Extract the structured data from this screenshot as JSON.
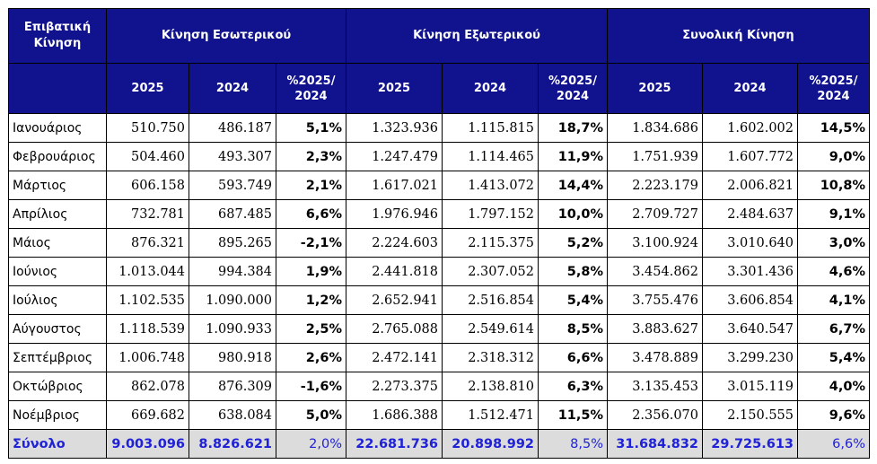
{
  "header": {
    "col0_line1": "Επιβατική",
    "col0_line2": "Κίνηση",
    "group_domestic": "Κίνηση Εσωτερικού",
    "group_international": "Κίνηση Εξωτερικού",
    "group_total": "Συνολική Κίνηση",
    "year_current": "2025",
    "year_previous": "2024",
    "pct_line1": "%2025/",
    "pct_line2": "2024"
  },
  "rows": [
    {
      "month": "Ιανουάριος",
      "d25": "510.750",
      "d24": "486.187",
      "dp": "5,1%",
      "i25": "1.323.936",
      "i24": "1.115.815",
      "ip": "18,7%",
      "t25": "1.834.686",
      "t24": "1.602.002",
      "tp": "14,5%"
    },
    {
      "month": "Φεβρουάριος",
      "d25": "504.460",
      "d24": "493.307",
      "dp": "2,3%",
      "i25": "1.247.479",
      "i24": "1.114.465",
      "ip": "11,9%",
      "t25": "1.751.939",
      "t24": "1.607.772",
      "tp": "9,0%"
    },
    {
      "month": "Μάρτιος",
      "d25": "606.158",
      "d24": "593.749",
      "dp": "2,1%",
      "i25": "1.617.021",
      "i24": "1.413.072",
      "ip": "14,4%",
      "t25": "2.223.179",
      "t24": "2.006.821",
      "tp": "10,8%"
    },
    {
      "month": "Απρίλιος",
      "d25": "732.781",
      "d24": "687.485",
      "dp": "6,6%",
      "i25": "1.976.946",
      "i24": "1.797.152",
      "ip": "10,0%",
      "t25": "2.709.727",
      "t24": "2.484.637",
      "tp": "9,1%"
    },
    {
      "month": "Μάιος",
      "d25": "876.321",
      "d24": "895.265",
      "dp": "-2,1%",
      "i25": "2.224.603",
      "i24": "2.115.375",
      "ip": "5,2%",
      "t25": "3.100.924",
      "t24": "3.010.640",
      "tp": "3,0%"
    },
    {
      "month": "Ιούνιος",
      "d25": "1.013.044",
      "d24": "994.384",
      "dp": "1,9%",
      "i25": "2.441.818",
      "i24": "2.307.052",
      "ip": "5,8%",
      "t25": "3.454.862",
      "t24": "3.301.436",
      "tp": "4,6%"
    },
    {
      "month": "Ιούλιος",
      "d25": "1.102.535",
      "d24": "1.090.000",
      "dp": "1,2%",
      "i25": "2.652.941",
      "i24": "2.516.854",
      "ip": "5,4%",
      "t25": "3.755.476",
      "t24": "3.606.854",
      "tp": "4,1%"
    },
    {
      "month": "Αύγουστος",
      "d25": "1.118.539",
      "d24": "1.090.933",
      "dp": "2,5%",
      "i25": "2.765.088",
      "i24": "2.549.614",
      "ip": "8,5%",
      "t25": "3.883.627",
      "t24": "3.640.547",
      "tp": "6,7%"
    },
    {
      "month": "Σεπτέμβριος",
      "d25": "1.006.748",
      "d24": "980.918",
      "dp": "2,6%",
      "i25": "2.472.141",
      "i24": "2.318.312",
      "ip": "6,6%",
      "t25": "3.478.889",
      "t24": "3.299.230",
      "tp": "5,4%"
    },
    {
      "month": "Οκτώβριος",
      "d25": "862.078",
      "d24": "876.309",
      "dp": "-1,6%",
      "i25": "2.273.375",
      "i24": "2.138.810",
      "ip": "6,3%",
      "t25": "3.135.453",
      "t24": "3.015.119",
      "tp": "4,0%"
    },
    {
      "month": "Νοέμβριος",
      "d25": "669.682",
      "d24": "638.084",
      "dp": "5,0%",
      "i25": "1.686.388",
      "i24": "1.512.471",
      "ip": "11,5%",
      "t25": "2.356.070",
      "t24": "2.150.555",
      "tp": "9,6%"
    }
  ],
  "total": {
    "month": "Σύνολο",
    "d25": "9.003.096",
    "d24": "8.826.621",
    "dp": "2,0%",
    "i25": "22.681.736",
    "i24": "20.898.992",
    "ip": "8,5%",
    "t25": "31.684.832",
    "t24": "29.725.613",
    "tp": "6,6%"
  },
  "colors": {
    "header_bg": "#10128e",
    "header_text": "#ffffff",
    "total_bg": "#dcdcdc",
    "total_text": "#1f22d6"
  }
}
